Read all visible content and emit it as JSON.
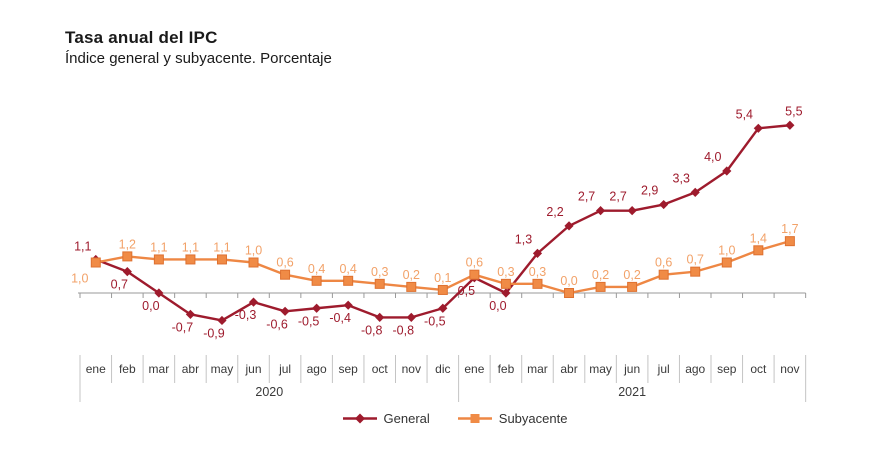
{
  "header": {
    "title": "Tasa anual del IPC",
    "subtitle": "Índice general y subyacente. Porcentaje"
  },
  "legend": {
    "general_label": "General",
    "subyacente_label": "Subyacente"
  },
  "colors": {
    "general": "#9E1B2D",
    "general_label": "#9E1B2D",
    "subyacente_line": "#EE8744",
    "subyacente_marker_fill": "#F08B46",
    "subyacente_marker_stroke": "#DE7130",
    "subyacente_label": "#F2A269",
    "axis": "#9A9A9A",
    "separator": "#C4C4C4",
    "month_text": "#3A3A3A",
    "year_text": "#3A3A3A"
  },
  "chart_data": {
    "type": "line",
    "title": "Tasa anual del IPC",
    "subtitle": "Índice general y subyacente. Porcentaje",
    "x_months": [
      "ene",
      "feb",
      "mar",
      "abr",
      "may",
      "jun",
      "jul",
      "ago",
      "sep",
      "oct",
      "nov",
      "dic",
      "ene",
      "feb",
      "mar",
      "abr",
      "may",
      "jun",
      "jul",
      "ago",
      "sep",
      "oct",
      "nov"
    ],
    "year_groups": [
      {
        "label": "2020",
        "start": 0,
        "count": 12
      },
      {
        "label": "2021",
        "start": 12,
        "count": 11
      }
    ],
    "series": [
      {
        "name": "General",
        "marker": "diamond",
        "color": "#9E1B2D",
        "label_color": "#9E1B2D",
        "values": [
          1.1,
          0.7,
          0.0,
          -0.7,
          -0.9,
          -0.3,
          -0.6,
          -0.5,
          -0.4,
          -0.8,
          -0.8,
          -0.5,
          0.5,
          0.0,
          1.3,
          2.2,
          2.7,
          2.7,
          2.9,
          3.3,
          4.0,
          5.4,
          5.5
        ]
      },
      {
        "name": "Subyacente",
        "marker": "square",
        "color": "#EE8744",
        "marker_fill": "#F08B46",
        "marker_stroke": "#DE7130",
        "label_color": "#F2A269",
        "values": [
          1.0,
          1.2,
          1.1,
          1.1,
          1.1,
          1.0,
          0.6,
          0.4,
          0.4,
          0.3,
          0.2,
          0.1,
          0.6,
          0.3,
          0.3,
          0.0,
          0.2,
          0.2,
          0.6,
          0.7,
          1.0,
          1.4,
          1.7
        ]
      }
    ],
    "ylim": [
      -1.5,
      6.0
    ],
    "zero_line": true,
    "grid": false,
    "legend_position": "bottom",
    "decimal_separator": ","
  }
}
